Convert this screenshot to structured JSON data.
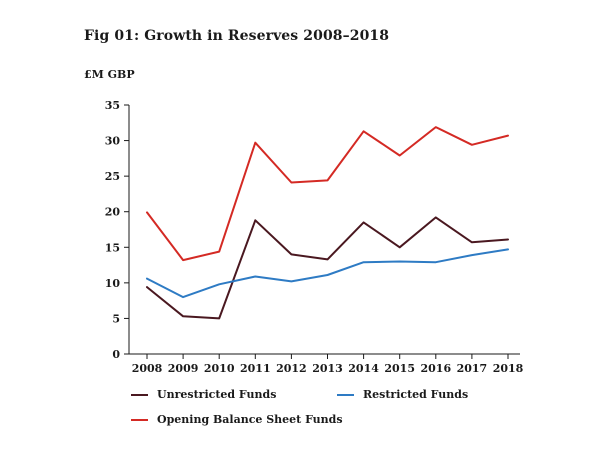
{
  "chart_data": {
    "type": "line",
    "title": "Fig 01: Growth in Reserves 2008–2018",
    "ylabel": "£M GBP",
    "xlabel": "",
    "categories": [
      "2008",
      "2009",
      "2010",
      "2011",
      "2012",
      "2013",
      "2014",
      "2015",
      "2016",
      "2017",
      "2018"
    ],
    "ylim": [
      0,
      35
    ],
    "yticks": [
      "0",
      "5",
      "10",
      "15",
      "20",
      "25",
      "30",
      "35"
    ],
    "series": [
      {
        "name": "Unrestricted Funds",
        "color": "#4a1820",
        "values": [
          9.4,
          5.3,
          5.0,
          18.8,
          14.0,
          13.3,
          18.5,
          15.0,
          19.2,
          15.7,
          16.1
        ]
      },
      {
        "name": "Restricted Funds",
        "color": "#2e7bc4",
        "values": [
          10.6,
          8.0,
          9.8,
          10.9,
          10.2,
          11.1,
          12.9,
          13.0,
          12.9,
          13.9,
          14.7
        ]
      },
      {
        "name": "Opening Balance Sheet Funds",
        "color": "#d42a24",
        "values": [
          19.9,
          13.2,
          14.4,
          29.7,
          24.1,
          24.4,
          31.3,
          27.9,
          31.9,
          29.4,
          30.7
        ]
      }
    ],
    "legend": "bottom",
    "grid": false
  }
}
